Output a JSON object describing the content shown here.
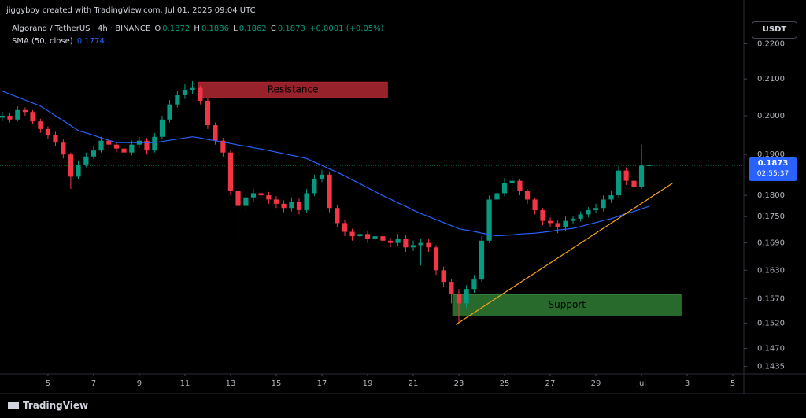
{
  "header": {
    "credit": "jiggyboy created with TradingView.com, Jul 01, 2025 09:04 UTC"
  },
  "footer": {
    "brand": "TradingView"
  },
  "chart_data": {
    "type": "candlestick",
    "title": "Algorand / TetherUS · 4h · BINANCE",
    "ohlc_letters": [
      "O",
      "H",
      "L",
      "C"
    ],
    "change": "+0.0001 (+0.05%)",
    "currency": "USDT",
    "countdown": "02:55:37",
    "log_scale": true,
    "grid": false,
    "up_color": "#089981",
    "down_color": "#f23645",
    "xlim": [
      2.9,
      35.48
    ],
    "xticks": [
      5,
      7,
      9,
      11,
      13,
      15,
      17,
      19,
      21,
      23,
      25,
      27,
      29,
      {
        "value": 31,
        "label": "Jul"
      },
      {
        "value": 33,
        "label": "3"
      },
      {
        "value": 35,
        "label": "5"
      }
    ],
    "ylim": [
      0.1421,
      0.2331
    ],
    "yticks": [
      {
        "value": 0.22,
        "label": "0.2200"
      },
      {
        "value": 0.21,
        "label": "0.2100"
      },
      {
        "value": 0.2,
        "label": "0.2000"
      },
      {
        "value": 0.19,
        "label": "0.1900"
      },
      {
        "value": 0.18,
        "label": "0.1800"
      },
      {
        "value": 0.175,
        "label": "0.1750"
      },
      {
        "value": 0.169,
        "label": "0.1690"
      },
      {
        "value": 0.163,
        "label": "0.1630"
      },
      {
        "value": 0.157,
        "label": "0.1570"
      },
      {
        "value": 0.152,
        "label": "0.1520"
      },
      {
        "value": 0.147,
        "label": "0.1470"
      },
      {
        "value": 0.1435,
        "label": "0.1435"
      }
    ],
    "x": [
      3,
      3.33,
      3.67,
      4,
      4.33,
      4.67,
      5,
      5.33,
      5.67,
      6,
      6.33,
      6.67,
      7,
      7.33,
      7.67,
      8,
      8.33,
      8.67,
      9,
      9.33,
      9.67,
      10,
      10.33,
      10.67,
      11,
      11.33,
      11.67,
      12,
      12.33,
      12.67,
      13,
      13.33,
      13.67,
      14,
      14.33,
      14.67,
      15,
      15.33,
      15.67,
      16,
      16.33,
      16.67,
      17,
      17.33,
      17.67,
      18,
      18.33,
      18.67,
      19,
      19.33,
      19.67,
      20,
      20.33,
      20.67,
      21,
      21.33,
      21.67,
      22,
      22.33,
      22.67,
      23,
      23.33,
      23.67,
      24,
      24.33,
      24.67,
      25,
      25.33,
      25.67,
      26,
      26.33,
      26.67,
      27,
      27.33,
      27.67,
      28,
      28.33,
      28.67,
      29,
      29.33,
      29.67,
      30,
      30.33,
      30.67,
      31,
      31.33
    ],
    "open": [
      0.1995,
      0.2,
      0.199,
      0.2015,
      0.201,
      0.1985,
      0.1965,
      0.195,
      0.193,
      0.19,
      0.1845,
      0.1875,
      0.1895,
      0.191,
      0.1935,
      0.1925,
      0.1915,
      0.1905,
      0.1925,
      0.1935,
      0.191,
      0.1945,
      0.199,
      0.203,
      0.2055,
      0.207,
      0.2075,
      0.204,
      0.1975,
      0.1935,
      0.1905,
      0.181,
      0.1775,
      0.1795,
      0.1805,
      0.18,
      0.179,
      0.178,
      0.177,
      0.1785,
      0.1765,
      0.1805,
      0.184,
      0.185,
      0.177,
      0.1735,
      0.1715,
      0.1705,
      0.171,
      0.17,
      0.1705,
      0.1695,
      0.169,
      0.17,
      0.168,
      0.1685,
      0.169,
      0.168,
      0.163,
      0.1605,
      0.158,
      0.156,
      0.159,
      0.161,
      0.1695,
      0.179,
      0.1805,
      0.183,
      0.1835,
      0.181,
      0.179,
      0.1765,
      0.174,
      0.1735,
      0.1725,
      0.174,
      0.1745,
      0.1755,
      0.1765,
      0.177,
      0.179,
      0.18,
      0.186,
      0.1835,
      0.182,
      0.1872
    ],
    "high": [
      0.201,
      0.2008,
      0.2025,
      0.2022,
      0.2015,
      0.1992,
      0.1972,
      0.1958,
      0.1938,
      0.1905,
      0.1885,
      0.1905,
      0.192,
      0.1945,
      0.1942,
      0.1932,
      0.1922,
      0.1935,
      0.1945,
      0.1942,
      0.1955,
      0.2,
      0.2042,
      0.2068,
      0.2085,
      0.2094,
      0.2082,
      0.2048,
      0.1982,
      0.1942,
      0.1912,
      0.1818,
      0.1805,
      0.1815,
      0.1812,
      0.1808,
      0.1798,
      0.1788,
      0.1795,
      0.1792,
      0.1815,
      0.185,
      0.1862,
      0.1855,
      0.1778,
      0.1742,
      0.1722,
      0.172,
      0.1718,
      0.1715,
      0.1712,
      0.1702,
      0.171,
      0.1708,
      0.1695,
      0.17,
      0.1698,
      0.1685,
      0.1638,
      0.1612,
      0.159,
      0.1598,
      0.162,
      0.1705,
      0.18,
      0.1815,
      0.1842,
      0.1848,
      0.184,
      0.1815,
      0.1795,
      0.177,
      0.1748,
      0.1742,
      0.175,
      0.1752,
      0.1762,
      0.1772,
      0.178,
      0.18,
      0.1812,
      0.1872,
      0.1868,
      0.1842,
      0.1925,
      0.1886
    ],
    "low": [
      0.1985,
      0.1982,
      0.1985,
      0.2,
      0.1978,
      0.1955,
      0.194,
      0.1922,
      0.189,
      0.1815,
      0.1838,
      0.1868,
      0.1888,
      0.1905,
      0.1915,
      0.1905,
      0.1895,
      0.1898,
      0.1918,
      0.19,
      0.1905,
      0.1938,
      0.1982,
      0.2022,
      0.2045,
      0.2058,
      0.203,
      0.1965,
      0.1925,
      0.1895,
      0.18,
      0.169,
      0.1765,
      0.1785,
      0.179,
      0.178,
      0.177,
      0.176,
      0.1762,
      0.1755,
      0.1758,
      0.1798,
      0.1832,
      0.176,
      0.1725,
      0.1705,
      0.1695,
      0.169,
      0.169,
      0.1692,
      0.1685,
      0.168,
      0.1682,
      0.167,
      0.1672,
      0.164,
      0.167,
      0.162,
      0.1595,
      0.156,
      0.152,
      0.155,
      0.1582,
      0.1605,
      0.169,
      0.1782,
      0.1798,
      0.1822,
      0.18,
      0.178,
      0.1755,
      0.173,
      0.1725,
      0.1712,
      0.1718,
      0.1732,
      0.1738,
      0.1748,
      0.1758,
      0.1762,
      0.1782,
      0.1795,
      0.1825,
      0.1805,
      0.1815,
      0.1862
    ],
    "close": [
      0.2,
      0.199,
      0.2015,
      0.201,
      0.1985,
      0.1965,
      0.195,
      0.193,
      0.19,
      0.1845,
      0.1875,
      0.1895,
      0.191,
      0.1935,
      0.1925,
      0.1915,
      0.1905,
      0.1925,
      0.1935,
      0.191,
      0.1945,
      0.199,
      0.203,
      0.2055,
      0.207,
      0.2075,
      0.204,
      0.1975,
      0.1935,
      0.1905,
      0.181,
      0.1775,
      0.1795,
      0.1805,
      0.18,
      0.179,
      0.178,
      0.177,
      0.1785,
      0.1765,
      0.1805,
      0.184,
      0.185,
      0.177,
      0.1735,
      0.1715,
      0.1705,
      0.171,
      0.17,
      0.1705,
      0.1695,
      0.169,
      0.17,
      0.168,
      0.1685,
      0.169,
      0.168,
      0.163,
      0.1605,
      0.158,
      0.156,
      0.159,
      0.161,
      0.1695,
      0.179,
      0.1805,
      0.183,
      0.1835,
      0.181,
      0.179,
      0.1765,
      0.174,
      0.1735,
      0.1725,
      0.174,
      0.1745,
      0.1755,
      0.1765,
      0.177,
      0.179,
      0.18,
      0.186,
      0.1835,
      0.182,
      0.1872,
      0.1873
    ],
    "sma": {
      "name": "SMA (50, close)",
      "color": "#2962ff",
      "values": [
        0.2066,
        0.2058,
        0.205,
        0.2042,
        0.2034,
        0.2026,
        0.2013,
        0.2,
        0.1987,
        0.1974,
        0.1961,
        0.1955,
        0.1949,
        0.1942,
        0.1936,
        0.193,
        0.193,
        0.193,
        0.193,
        0.193,
        0.193,
        0.1933,
        0.1936,
        0.1939,
        0.1942,
        0.1945,
        0.1942,
        0.1938,
        0.1935,
        0.1931,
        0.1928,
        0.1924,
        0.1921,
        0.1917,
        0.1914,
        0.191,
        0.1906,
        0.1902,
        0.1898,
        0.1894,
        0.189,
        0.1881,
        0.1873,
        0.1864,
        0.1856,
        0.1847,
        0.1837,
        0.1828,
        0.1818,
        0.1809,
        0.1799,
        0.1791,
        0.1782,
        0.1774,
        0.1765,
        0.1757,
        0.175,
        0.1743,
        0.1736,
        0.1729,
        0.1722,
        0.1719,
        0.1716,
        0.1712,
        0.1709,
        0.1706,
        0.1707,
        0.1708,
        0.171,
        0.1711,
        0.1712,
        0.1714,
        0.1716,
        0.1719,
        0.1721,
        0.1723,
        0.1727,
        0.1732,
        0.1736,
        0.1741,
        0.1745,
        0.1751,
        0.1757,
        0.1762,
        0.1768,
        0.1774
      ]
    },
    "annotations": [
      {
        "label": "Resistance",
        "x": [
          11.59,
          19.87
        ],
        "y": [
          0.2048,
          0.2091
        ],
        "color": "#b22833"
      },
      {
        "label": "Support",
        "x": [
          22.73,
          32.73
        ],
        "y": [
          0.1536,
          0.1578
        ],
        "color": "#2e7d32"
      }
    ],
    "trendline": {
      "x": [
        22.87,
        32.38
      ],
      "y": [
        0.1517,
        0.183
      ],
      "color": "#f7a21b"
    }
  }
}
